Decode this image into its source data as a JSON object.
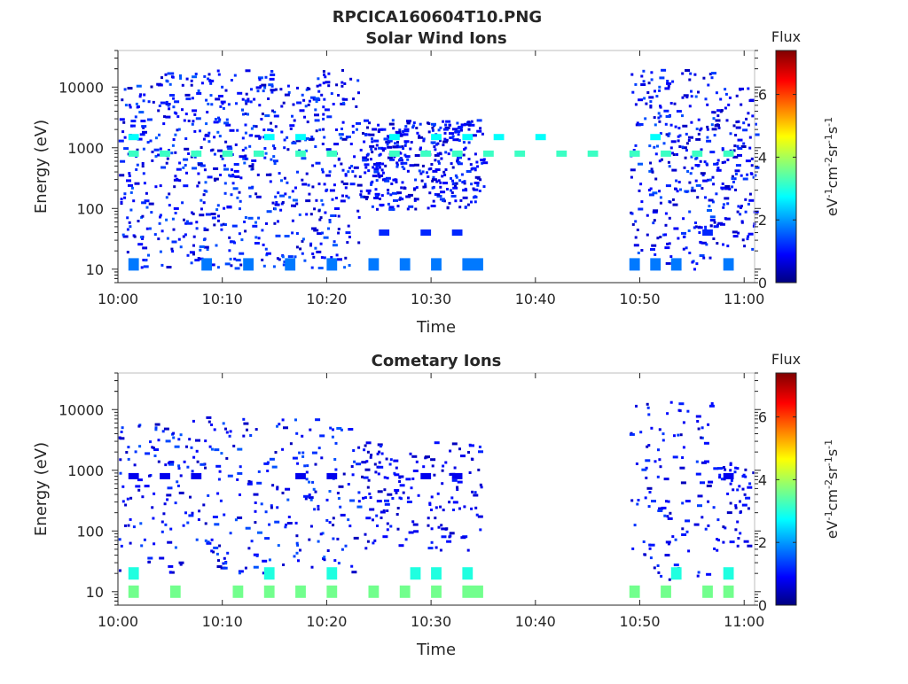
{
  "figure_title": "RPCICA160604T10.PNG",
  "chart_data": [
    {
      "type": "heatmap",
      "title": "Solar Wind Ions",
      "xlabel": "Time",
      "ylabel": "Energy (eV)",
      "x_ticks": [
        "10:00",
        "10:10",
        "10:20",
        "10:30",
        "10:40",
        "10:50",
        "11:00"
      ],
      "xlim": [
        "10:00",
        "11:01"
      ],
      "y_scale": "log",
      "y_ticks": [
        "10",
        "100",
        "1000",
        "10000"
      ],
      "ylim": [
        6,
        40000
      ],
      "colorbar": {
        "title": "Flux",
        "label": "eV-1cm-2sr-1s-1",
        "ticks": [
          "0",
          "2",
          "4",
          "6"
        ],
        "range": [
          0,
          7.4
        ],
        "colormap": "jet"
      },
      "bands": [
        {
          "energy": 800,
          "flux": 3.2,
          "segments": [
            [
              "10:01",
              "10:02"
            ],
            [
              "10:04",
              "10:05"
            ],
            [
              "10:07",
              "10:08"
            ],
            [
              "10:10",
              "10:11"
            ],
            [
              "10:13",
              "10:14"
            ],
            [
              "10:17",
              "10:18"
            ],
            [
              "10:20",
              "10:21"
            ],
            [
              "10:26",
              "10:27"
            ],
            [
              "10:29",
              "10:30"
            ],
            [
              "10:32",
              "10:33"
            ],
            [
              "10:35",
              "10:36"
            ],
            [
              "10:38",
              "10:39"
            ],
            [
              "10:42",
              "10:43"
            ],
            [
              "10:45",
              "10:46"
            ],
            [
              "10:49",
              "10:50"
            ],
            [
              "10:52",
              "10:53"
            ],
            [
              "10:55",
              "10:56"
            ],
            [
              "10:58",
              "10:59"
            ]
          ]
        },
        {
          "energy": 1500,
          "flux": 2.8,
          "segments": [
            [
              "10:01",
              "10:02"
            ],
            [
              "10:14",
              "10:15"
            ],
            [
              "10:17",
              "10:18"
            ],
            [
              "10:26",
              "10:27"
            ],
            [
              "10:30",
              "10:31"
            ],
            [
              "10:33",
              "10:34"
            ],
            [
              "10:36",
              "10:37"
            ],
            [
              "10:40",
              "10:41"
            ],
            [
              "10:51",
              "10:52"
            ]
          ]
        },
        {
          "energy": 12,
          "flux": 1.8,
          "segments": [
            [
              "10:01",
              "10:02"
            ],
            [
              "10:08",
              "10:09"
            ],
            [
              "10:12",
              "10:13"
            ],
            [
              "10:16",
              "10:17"
            ],
            [
              "10:20",
              "10:21"
            ],
            [
              "10:24",
              "10:25"
            ],
            [
              "10:27",
              "10:28"
            ],
            [
              "10:30",
              "10:31"
            ],
            [
              "10:33",
              "10:35"
            ],
            [
              "10:49",
              "10:50"
            ],
            [
              "10:51",
              "10:52"
            ],
            [
              "10:53",
              "10:54"
            ],
            [
              "10:58",
              "10:59"
            ]
          ]
        },
        {
          "energy": 40,
          "flux": 1.2,
          "segments": [
            [
              "10:25",
              "10:26"
            ],
            [
              "10:29",
              "10:30"
            ],
            [
              "10:32",
              "10:33"
            ],
            [
              "10:56",
              "10:57"
            ]
          ]
        }
      ],
      "scatter": [
        {
          "time_range": [
            "10:00",
            "10:23"
          ],
          "energy_range": [
            10,
            20000
          ],
          "flux_range": [
            0.4,
            1.6
          ]
        },
        {
          "time_range": [
            "10:23",
            "10:35"
          ],
          "energy_range": [
            100,
            3000
          ],
          "flux_range": [
            0.4,
            1.4
          ]
        },
        {
          "time_range": [
            "10:49",
            "10:57"
          ],
          "energy_range": [
            10,
            20000
          ],
          "flux_range": [
            0.4,
            1.6
          ]
        },
        {
          "time_range": [
            "10:57",
            "11:01"
          ],
          "energy_range": [
            20,
            10000
          ],
          "flux_range": [
            0.4,
            1.4
          ]
        }
      ]
    },
    {
      "type": "heatmap",
      "title": "Cometary Ions",
      "xlabel": "Time",
      "ylabel": "Energy (eV)",
      "x_ticks": [
        "10:00",
        "10:10",
        "10:20",
        "10:30",
        "10:40",
        "10:50",
        "11:00"
      ],
      "xlim": [
        "10:00",
        "11:01"
      ],
      "y_scale": "log",
      "y_ticks": [
        "10",
        "100",
        "1000",
        "10000"
      ],
      "ylim": [
        6,
        40000
      ],
      "colorbar": {
        "title": "Flux",
        "label": "eV-1cm-2sr-1s-1",
        "ticks": [
          "0",
          "2",
          "4",
          "6"
        ],
        "range": [
          0,
          7.4
        ],
        "colormap": "jet"
      },
      "bands": [
        {
          "energy": 800,
          "flux": 0.8,
          "segments": [
            [
              "10:01",
              "10:02"
            ],
            [
              "10:04",
              "10:05"
            ],
            [
              "10:07",
              "10:08"
            ],
            [
              "10:17",
              "10:18"
            ],
            [
              "10:20",
              "10:21"
            ],
            [
              "10:29",
              "10:30"
            ],
            [
              "10:32",
              "10:33"
            ],
            [
              "10:58",
              "10:59"
            ]
          ]
        },
        {
          "energy": 10,
          "flux": 3.6,
          "segments": [
            [
              "10:01",
              "10:02"
            ],
            [
              "10:05",
              "10:06"
            ],
            [
              "10:11",
              "10:12"
            ],
            [
              "10:14",
              "10:15"
            ],
            [
              "10:17",
              "10:18"
            ],
            [
              "10:20",
              "10:21"
            ],
            [
              "10:24",
              "10:25"
            ],
            [
              "10:27",
              "10:28"
            ],
            [
              "10:30",
              "10:31"
            ],
            [
              "10:33",
              "10:35"
            ],
            [
              "10:49",
              "10:50"
            ],
            [
              "10:52",
              "10:53"
            ],
            [
              "10:56",
              "10:57"
            ],
            [
              "10:58",
              "10:59"
            ]
          ]
        },
        {
          "energy": 20,
          "flux": 3.0,
          "segments": [
            [
              "10:01",
              "10:02"
            ],
            [
              "10:14",
              "10:15"
            ],
            [
              "10:20",
              "10:21"
            ],
            [
              "10:28",
              "10:29"
            ],
            [
              "10:30",
              "10:31"
            ],
            [
              "10:33",
              "10:34"
            ],
            [
              "10:53",
              "10:54"
            ],
            [
              "10:58",
              "10:59"
            ]
          ]
        }
      ],
      "scatter": [
        {
          "time_range": [
            "10:00",
            "10:23"
          ],
          "energy_range": [
            20,
            8000
          ],
          "flux_range": [
            0.4,
            1.6
          ]
        },
        {
          "time_range": [
            "10:23",
            "10:35"
          ],
          "energy_range": [
            50,
            3000
          ],
          "flux_range": [
            0.4,
            1.2
          ]
        },
        {
          "time_range": [
            "10:49",
            "10:57"
          ],
          "energy_range": [
            15,
            15000
          ],
          "flux_range": [
            0.4,
            1.4
          ]
        },
        {
          "time_range": [
            "10:57",
            "11:01"
          ],
          "energy_range": [
            50,
            1500
          ],
          "flux_range": [
            0.4,
            1.2
          ]
        }
      ]
    }
  ]
}
